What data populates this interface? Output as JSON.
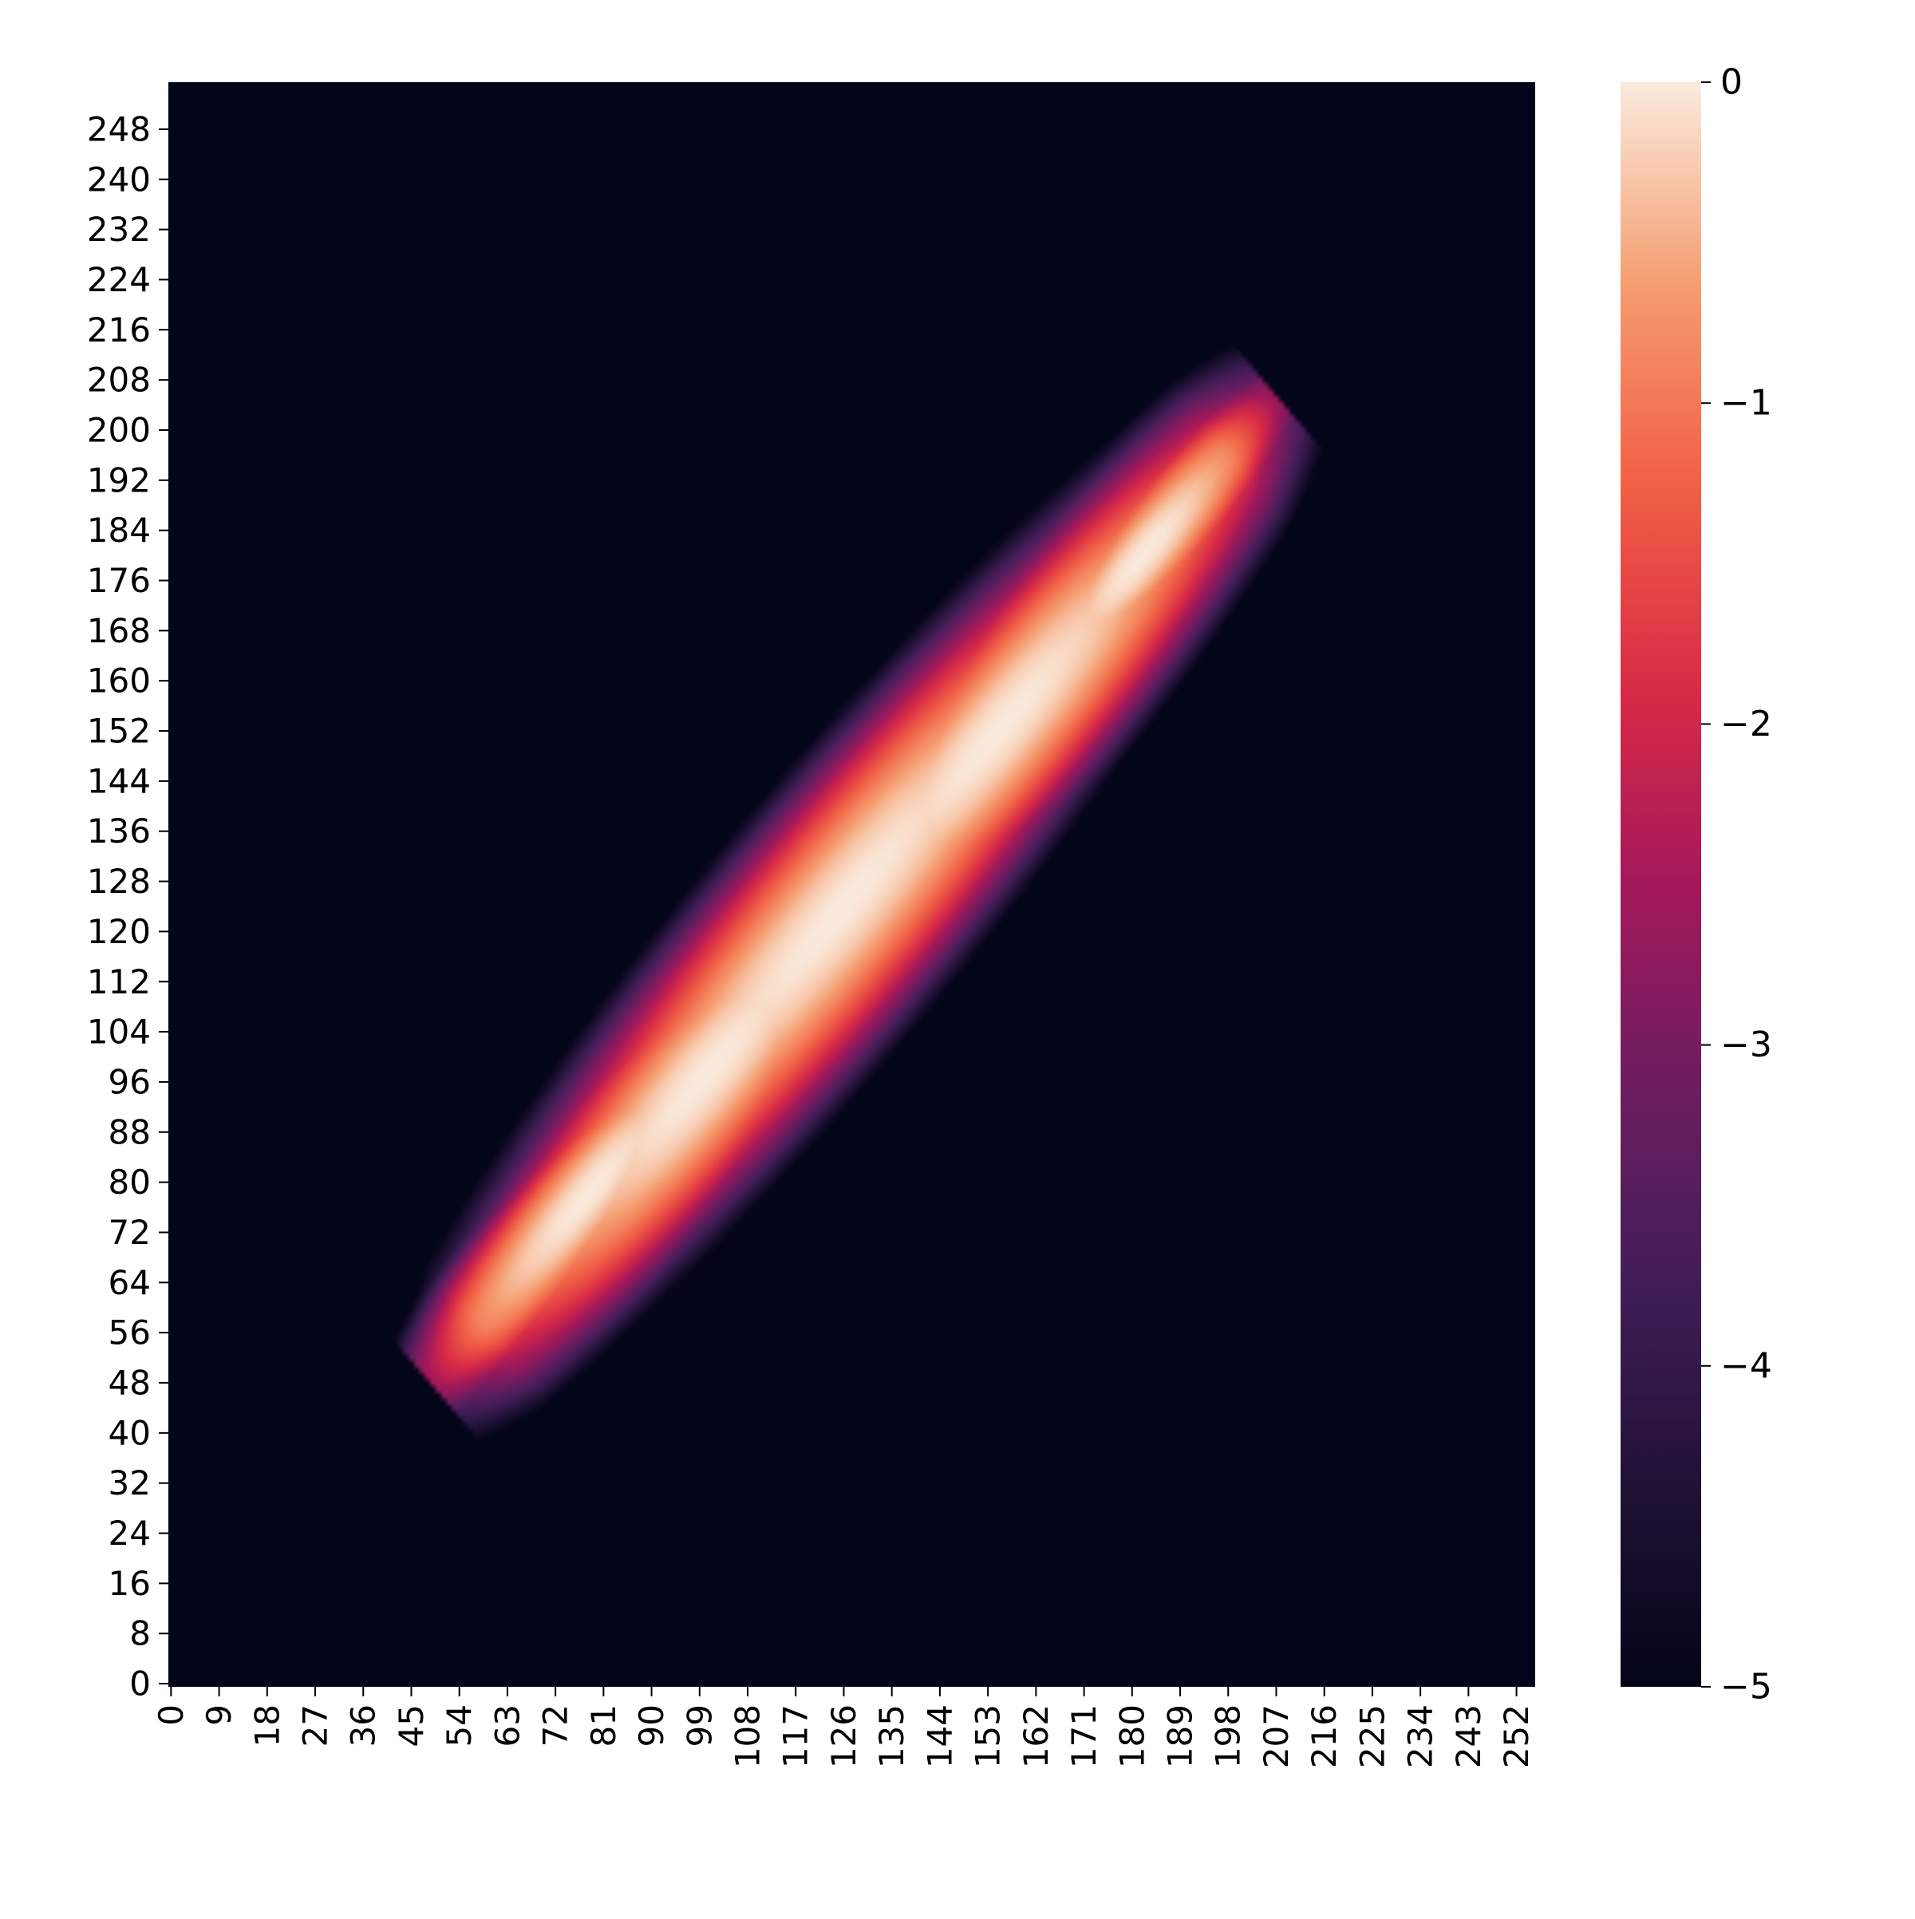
{
  "chart_data": {
    "type": "heatmap",
    "title": "",
    "xlabel": "",
    "ylabel": "",
    "x_tick_labels": [
      "0",
      "9",
      "18",
      "27",
      "36",
      "45",
      "54",
      "63",
      "72",
      "81",
      "90",
      "99",
      "108",
      "117",
      "126",
      "135",
      "144",
      "153",
      "162",
      "171",
      "180",
      "189",
      "198",
      "207",
      "216",
      "225",
      "234",
      "243",
      "252"
    ],
    "y_tick_labels": [
      "0",
      "8",
      "16",
      "24",
      "32",
      "40",
      "48",
      "56",
      "64",
      "72",
      "80",
      "88",
      "96",
      "104",
      "112",
      "120",
      "128",
      "136",
      "144",
      "152",
      "160",
      "168",
      "176",
      "184",
      "192",
      "200",
      "208",
      "216",
      "224",
      "232",
      "240",
      "248"
    ],
    "xlim": [
      0,
      256
    ],
    "ylim": [
      0,
      256
    ],
    "grid": false,
    "colormap": "rocket",
    "colorbar": {
      "range": [
        -5,
        0
      ],
      "tick_values": [
        0,
        -1,
        -2,
        -3,
        -4,
        -5
      ],
      "tick_labels": [
        "0",
        "−1",
        "−2",
        "−3",
        "−4",
        "−5"
      ]
    },
    "density": {
      "description_values": "log-density (colorbar units), clipped at -5",
      "ridge_start": [
        49,
        49
      ],
      "ridge_end": [
        204,
        207
      ],
      "peak_value": 0,
      "min_value": -5,
      "blobs": [
        {
          "center": [
            125,
            123
          ],
          "spread_along": 42,
          "spread_across": 7.5
        },
        {
          "center": [
            100,
            97
          ],
          "spread_along": 30,
          "spread_across": 6.5
        },
        {
          "center": [
            155,
            152
          ],
          "spread_along": 34,
          "spread_across": 6.5
        },
        {
          "center": [
            78,
            78
          ],
          "spread_along": 22,
          "spread_across": 4.5
        },
        {
          "center": [
            182,
            180
          ],
          "spread_along": 18,
          "spread_across": 4.0
        }
      ]
    }
  }
}
